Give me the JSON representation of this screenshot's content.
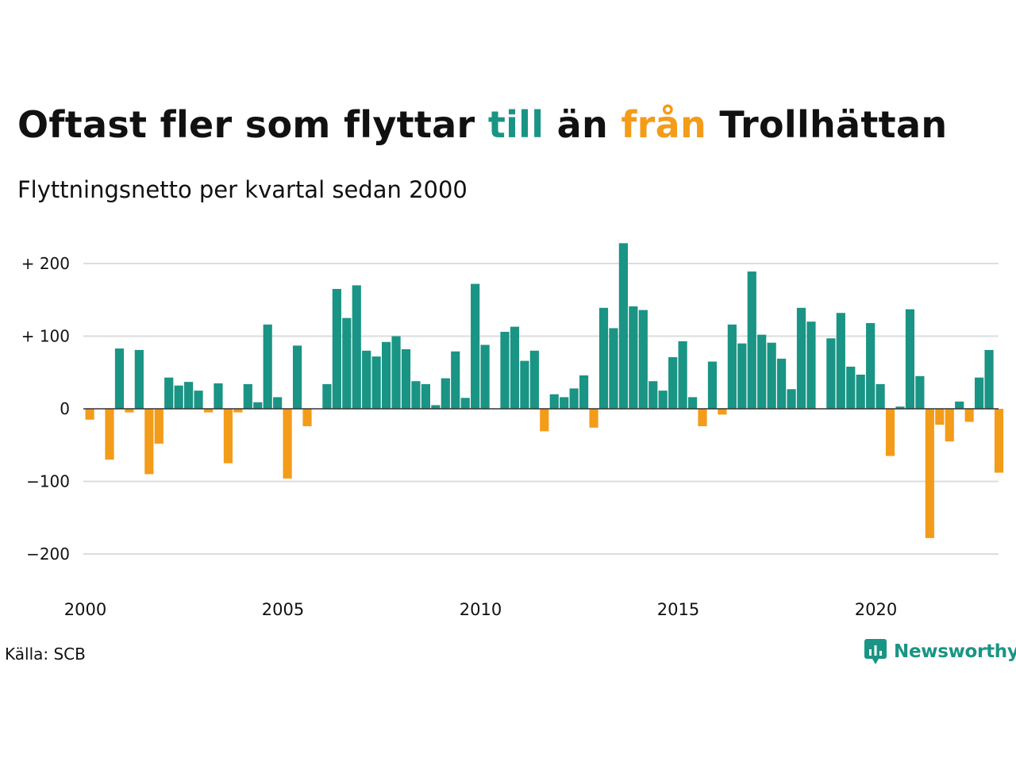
{
  "title": {
    "part1": "Oftast fler som flyttar ",
    "highlight_till": "till",
    "part2": " än ",
    "highlight_fran": "från",
    "part3": " Trollhättan"
  },
  "subtitle": "Flyttningsnetto per kvartal sedan 2000",
  "source": "Källa: SCB",
  "brand": "Newsworthy",
  "colors": {
    "positive": "#1a9484",
    "negative": "#f39c1a",
    "grid": "#dddddd",
    "baseline": "#333333"
  },
  "chart_data": {
    "type": "bar",
    "ylim": [
      -225,
      230
    ],
    "yticks": [
      {
        "value": 200,
        "label": "+ 200"
      },
      {
        "value": 100,
        "label": "+ 100"
      },
      {
        "value": 0,
        "label": "0"
      },
      {
        "value": -100,
        "label": "−100"
      },
      {
        "value": -200,
        "label": "−200"
      }
    ],
    "xticks": [
      "2000",
      "2005",
      "2010",
      "2015",
      "2020"
    ],
    "start_year": 2000,
    "quarters_per_year": 4,
    "grid": true,
    "values": [
      -15,
      0,
      -70,
      83,
      -5,
      81,
      -90,
      -48,
      43,
      32,
      37,
      25,
      -5,
      35,
      -75,
      -5,
      34,
      9,
      116,
      16,
      -96,
      87,
      -24,
      0,
      34,
      165,
      125,
      170,
      80,
      72,
      92,
      100,
      82,
      38,
      34,
      5,
      42,
      79,
      15,
      172,
      88,
      0,
      106,
      113,
      66,
      80,
      -31,
      20,
      16,
      28,
      46,
      -26,
      139,
      111,
      228,
      141,
      136,
      38,
      25,
      71,
      93,
      16,
      -24,
      65,
      -8,
      116,
      90,
      189,
      102,
      91,
      69,
      27,
      139,
      120,
      0,
      97,
      132,
      58,
      47,
      118,
      34,
      -65,
      3,
      137,
      45,
      -178,
      -22,
      -45,
      10,
      -18,
      43,
      81,
      -88
    ]
  }
}
